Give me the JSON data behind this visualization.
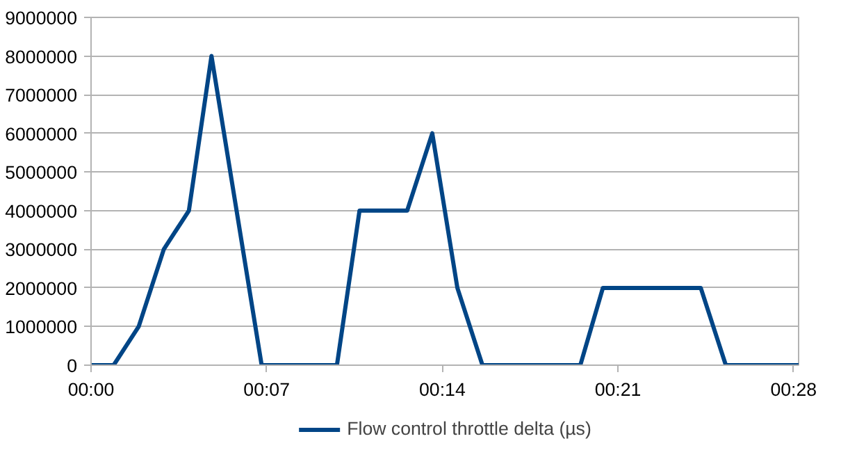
{
  "chart_data": {
    "type": "line",
    "legend": "bottom",
    "grid": "y",
    "line_style": "solid",
    "marker": "none",
    "x": [
      0,
      0.9,
      1.9,
      2.9,
      3.9,
      4.8,
      5.8,
      6.8,
      9.8,
      10.7,
      12.6,
      13.6,
      14.6,
      15.6,
      19.5,
      20.4,
      24.3,
      25.3,
      28.2
    ],
    "series": [
      {
        "name": "Flow control throttle delta (µs)",
        "color": "#004586",
        "values": [
          0,
          0,
          1000000,
          3000000,
          4000000,
          8000000,
          4000000,
          0,
          0,
          4000000,
          4000000,
          6000000,
          2000000,
          0,
          0,
          2000000,
          2000000,
          0,
          0
        ]
      }
    ],
    "xlim": [
      0,
      28.2
    ],
    "xticks": [
      {
        "value": 0,
        "label": "00:00"
      },
      {
        "value": 7,
        "label": "00:07"
      },
      {
        "value": 14,
        "label": "00:14"
      },
      {
        "value": 21,
        "label": "00:21"
      },
      {
        "value": 28,
        "label": "00:28"
      }
    ],
    "ylim": [
      0,
      9000000
    ],
    "yticks": [
      0,
      1000000,
      2000000,
      3000000,
      4000000,
      5000000,
      6000000,
      7000000,
      8000000,
      9000000
    ]
  }
}
